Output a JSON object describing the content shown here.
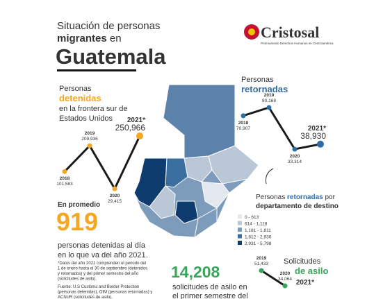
{
  "header": {
    "title_line1": "Situación de personas",
    "title_bold": "migrantes",
    "title_after": "en",
    "title_big": "Guatemala"
  },
  "logo": {
    "name": "Cristosal",
    "tagline": "Promoviendo Derechos Humanos en Centroamérica"
  },
  "detenidas_text": {
    "line1": "Personas",
    "highlight": "detenidas",
    "line3": "en la frontera sur de",
    "line4": "Estados Unidos"
  },
  "retornadas_text": {
    "line1": "Personas",
    "highlight": "retornadas"
  },
  "promedio": {
    "intro": "En promedio",
    "number": "919",
    "line1": "personas detenidas al día",
    "line2": "en lo que va del año 2021."
  },
  "map_legend": {
    "caption_start": "Personas",
    "caption_highlight": "retornadas",
    "caption_end": "por",
    "caption_line2": "departamento de destino",
    "bins": [
      {
        "label": "0 - 613",
        "color": "#e3e8ee"
      },
      {
        "label": "614 - 1,118",
        "color": "#b9c7d6"
      },
      {
        "label": "1,181 - 1,811",
        "color": "#7d9bbb"
      },
      {
        "label": "1,812 - 2,930",
        "color": "#3a6f9f"
      },
      {
        "label": "2,931 - 5,798",
        "color": "#0f3c6e"
      }
    ]
  },
  "asilo_text": {
    "number": "14,208",
    "line1": "solicitudes de asilo en",
    "line2": "el primer semestre del",
    "title1": "Solicitudes",
    "title2": "de asilo"
  },
  "footnote": {
    "note": [
      "*Datos del año 2021 comprenden el periodo del",
      "1 de enero hasta el 30 de septiembre (detenidos",
      "y retornados) y del primer semestre del año",
      "(solicitudes de asilo)."
    ],
    "source": [
      "Fuente: U.S Customs and Border Protection",
      "(personas detenidas), OIM (personas retornadas) y",
      "ACNUR (solicitudes de asilo)."
    ]
  },
  "chart_data": [
    {
      "type": "line",
      "categories": [
        "2018",
        "2019",
        "2020",
        "2021*"
      ],
      "values": [
        101583,
        209936,
        29415,
        250966
      ],
      "value_labels": [
        "101,583",
        "209,936",
        "29,415",
        "250,966"
      ],
      "color": "#1a1a1a",
      "marker_color": "#f5a623"
    },
    {
      "type": "line",
      "categories": [
        "2018",
        "2019",
        "2020",
        "2021*"
      ],
      "values": [
        70907,
        80168,
        33314,
        38930
      ],
      "value_labels": [
        "70,907",
        "80,168",
        "33,314",
        "38,930"
      ],
      "color": "#1a1a1a",
      "marker_color": "#2e6da4"
    },
    {
      "type": "line",
      "categories": [
        "2019",
        "2020",
        "2021*"
      ],
      "values": [
        51433,
        34064,
        null
      ],
      "value_labels": [
        "51,433",
        "34,064",
        null
      ],
      "color": "#1a1a1a",
      "marker_color": "#3aa55b"
    }
  ]
}
